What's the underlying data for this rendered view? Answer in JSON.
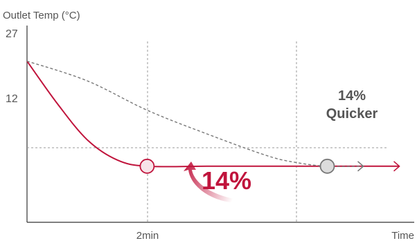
{
  "chart_data": {
    "type": "line",
    "title": "",
    "xlabel": "Time",
    "ylabel": "Outlet Temp (°C)",
    "y_ticks": [
      "27",
      "12"
    ],
    "x_ticks": [
      "2min"
    ],
    "ylim": [
      0,
      27
    ],
    "grid": "dashed reference lines",
    "series": [
      {
        "style": "solid",
        "color": "#c0143c",
        "points": [
          [
            0,
            23
          ],
          [
            0.5,
            17
          ],
          [
            1,
            11.8
          ],
          [
            1.5,
            8.9
          ],
          [
            2,
            8
          ],
          [
            3,
            8
          ],
          [
            4,
            8
          ],
          [
            5,
            8
          ],
          [
            6.2,
            8
          ]
        ]
      },
      {
        "style": "dashed",
        "color": "#777777",
        "points": [
          [
            0,
            23
          ],
          [
            1,
            20.2
          ],
          [
            2,
            16
          ],
          [
            3,
            12.6
          ],
          [
            4,
            9.5
          ],
          [
            4.5,
            8.5
          ],
          [
            5,
            8
          ],
          [
            5.6,
            8
          ]
        ]
      }
    ],
    "markers": [
      {
        "x": 2,
        "y": 8,
        "color": "#c0143c"
      },
      {
        "x": 5,
        "y": 8,
        "color": "#777777"
      }
    ],
    "annotations": {
      "improvement": "14%",
      "quicker_line1": "14%",
      "quicker_line2": "Quicker"
    }
  },
  "colors": {
    "accent": "#c0143c",
    "reference": "#777777",
    "axis": "#333333"
  }
}
